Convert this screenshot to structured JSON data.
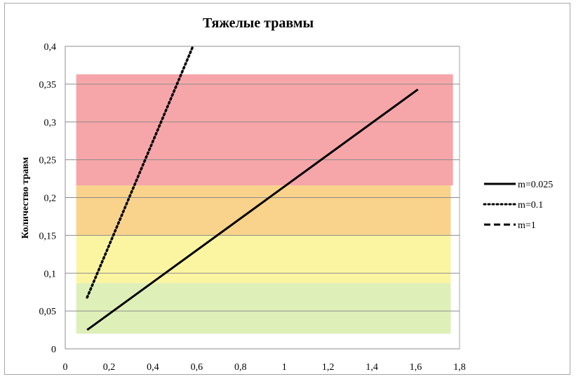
{
  "chart_data": {
    "type": "line",
    "title": "Тяжелые травмы",
    "xlabel": "",
    "ylabel": "Количество травм",
    "xlim": [
      0,
      1.8
    ],
    "ylim": [
      0,
      0.4
    ],
    "x_ticks": [
      0,
      0.2,
      0.4,
      0.6,
      0.8,
      1,
      1.2,
      1.4,
      1.6,
      1.8
    ],
    "x_tick_labels": [
      "0",
      "0,2",
      "0,4",
      "0,6",
      "0,8",
      "1",
      "1,2",
      "1,4",
      "1,6",
      "1,8"
    ],
    "y_ticks": [
      0,
      0.05,
      0.1,
      0.15,
      0.2,
      0.25,
      0.3,
      0.35,
      0.4
    ],
    "y_tick_labels": [
      "0",
      "0,05",
      "0,1",
      "0,15",
      "0,2",
      "0,25",
      "0,3",
      "0,35",
      "0,4"
    ],
    "grid": "horizontal",
    "legend_position": "right",
    "bands": [
      {
        "name": "green-zone",
        "x": [
          0.05,
          1.76
        ],
        "y": [
          0.02,
          0.087
        ],
        "color": "#dfefb8"
      },
      {
        "name": "yellow-zone",
        "x": [
          0.05,
          1.76
        ],
        "y": [
          0.087,
          0.15
        ],
        "color": "#fbf5a2"
      },
      {
        "name": "orange-zone",
        "x": [
          0.05,
          1.76
        ],
        "y": [
          0.15,
          0.216
        ],
        "color": "#f9d38b"
      },
      {
        "name": "red-zone",
        "x": [
          0.05,
          1.77
        ],
        "y": [
          0.216,
          0.363
        ],
        "color": "#f6a6a8"
      }
    ],
    "series": [
      {
        "name": "m=0.025",
        "style": "solid",
        "color": "#000000",
        "x": [
          0.1,
          1.61
        ],
        "y": [
          0.025,
          0.343
        ]
      },
      {
        "name": "m=0.1",
        "style": "dotted",
        "color": "#000000",
        "x": [
          0.1,
          0.58
        ],
        "y": [
          0.068,
          0.398
        ]
      },
      {
        "name": "m=1",
        "style": "dashed",
        "color": "#000000",
        "x": [],
        "y": []
      }
    ]
  }
}
